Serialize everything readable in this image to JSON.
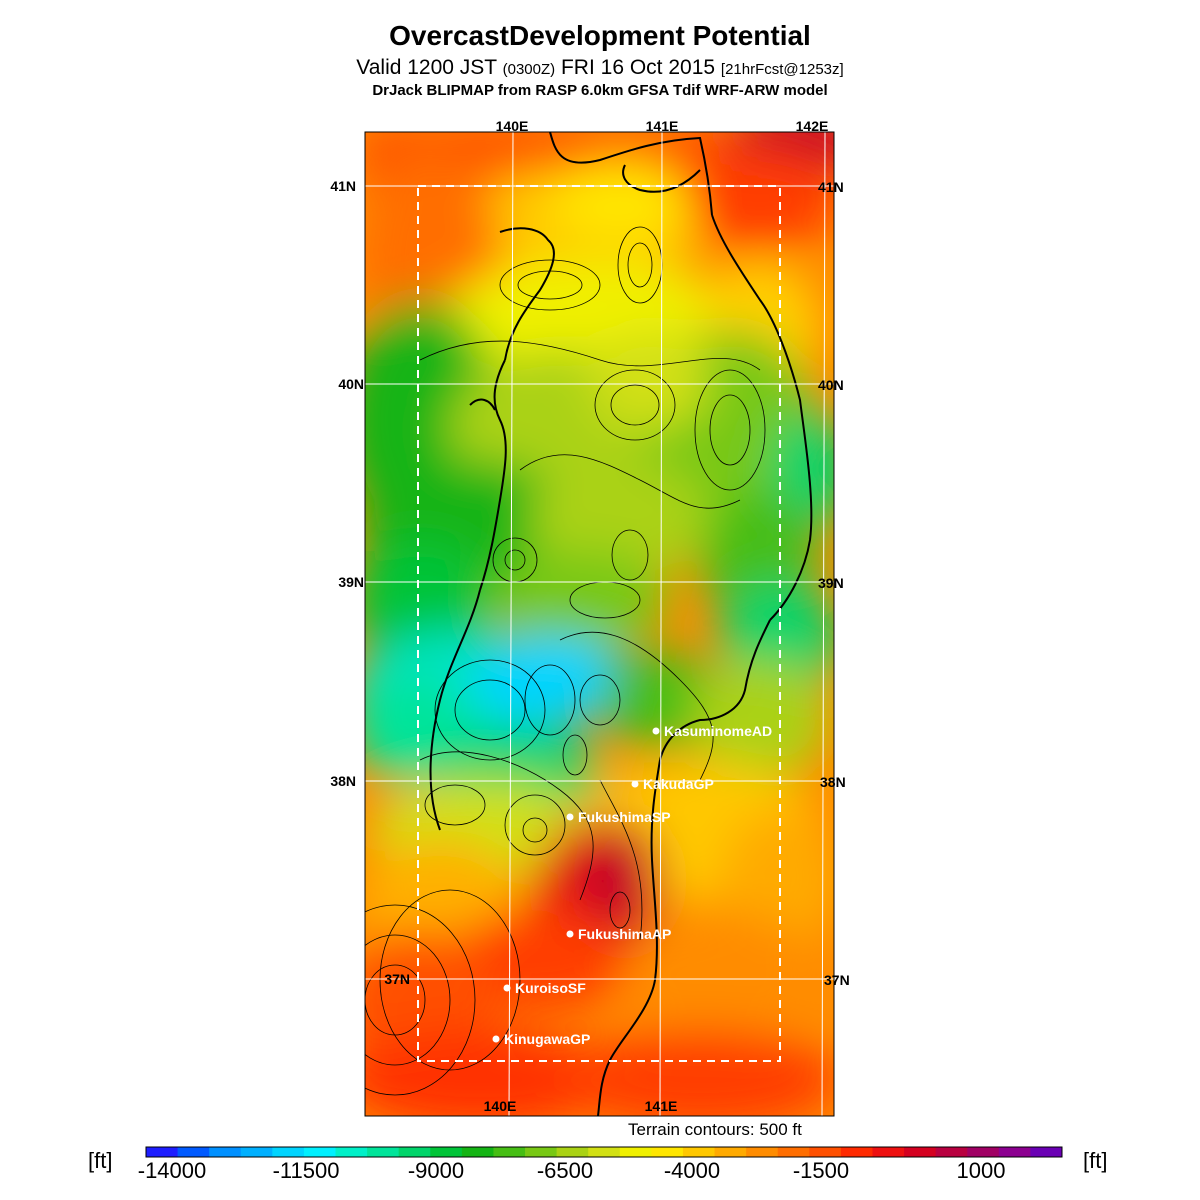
{
  "header": {
    "title": "OvercastDevelopment Potential",
    "valid_prefix": "Valid 1200 JST",
    "valid_utc": "(0300Z)",
    "valid_date": "FRI 16 Oct 2015",
    "forecast": "[21hrFcst@1253z]",
    "model": "DrJack BLIPMAP from RASP 6.0km GFSA Tdif WRF-ARW model"
  },
  "map": {
    "lon_labels_top": [
      "140E",
      "141E",
      "142E"
    ],
    "lon_labels_bottom": [
      "140E",
      "141E"
    ],
    "lat_labels_left": [
      "41N",
      "40N",
      "39N",
      "38N",
      "37N"
    ],
    "lat_labels_right": [
      "41N",
      "40N",
      "39N",
      "38N",
      "37N"
    ],
    "stations": [
      {
        "name": "KasuminomeAD"
      },
      {
        "name": "KakudaGP"
      },
      {
        "name": "FukushimaSP"
      },
      {
        "name": "FukushimaAP"
      },
      {
        "name": "KuroisoSF"
      },
      {
        "name": "KinugawaGP"
      }
    ],
    "terrain_note": "Terrain contours: 500 ft"
  },
  "colorbar": {
    "unit_left": "[ft]",
    "unit_right": "[ft]",
    "tick_labels": [
      "-14000",
      "-11500",
      "-9000",
      "-6500",
      "-4000",
      "-1500",
      "1000"
    ],
    "colors": [
      "#1e1eff",
      "#005aff",
      "#0090ff",
      "#00b0ff",
      "#00d4ff",
      "#00f0ff",
      "#00f0c8",
      "#00e49a",
      "#00d46a",
      "#00c438",
      "#14b414",
      "#46be14",
      "#78c814",
      "#aad214",
      "#d2e014",
      "#f0f000",
      "#ffe600",
      "#ffc800",
      "#ffaa00",
      "#ff8c00",
      "#ff6e00",
      "#ff5000",
      "#ff2a00",
      "#ee1010",
      "#d40020",
      "#b80040",
      "#a00064",
      "#8c0090",
      "#6a00b4"
    ]
  }
}
